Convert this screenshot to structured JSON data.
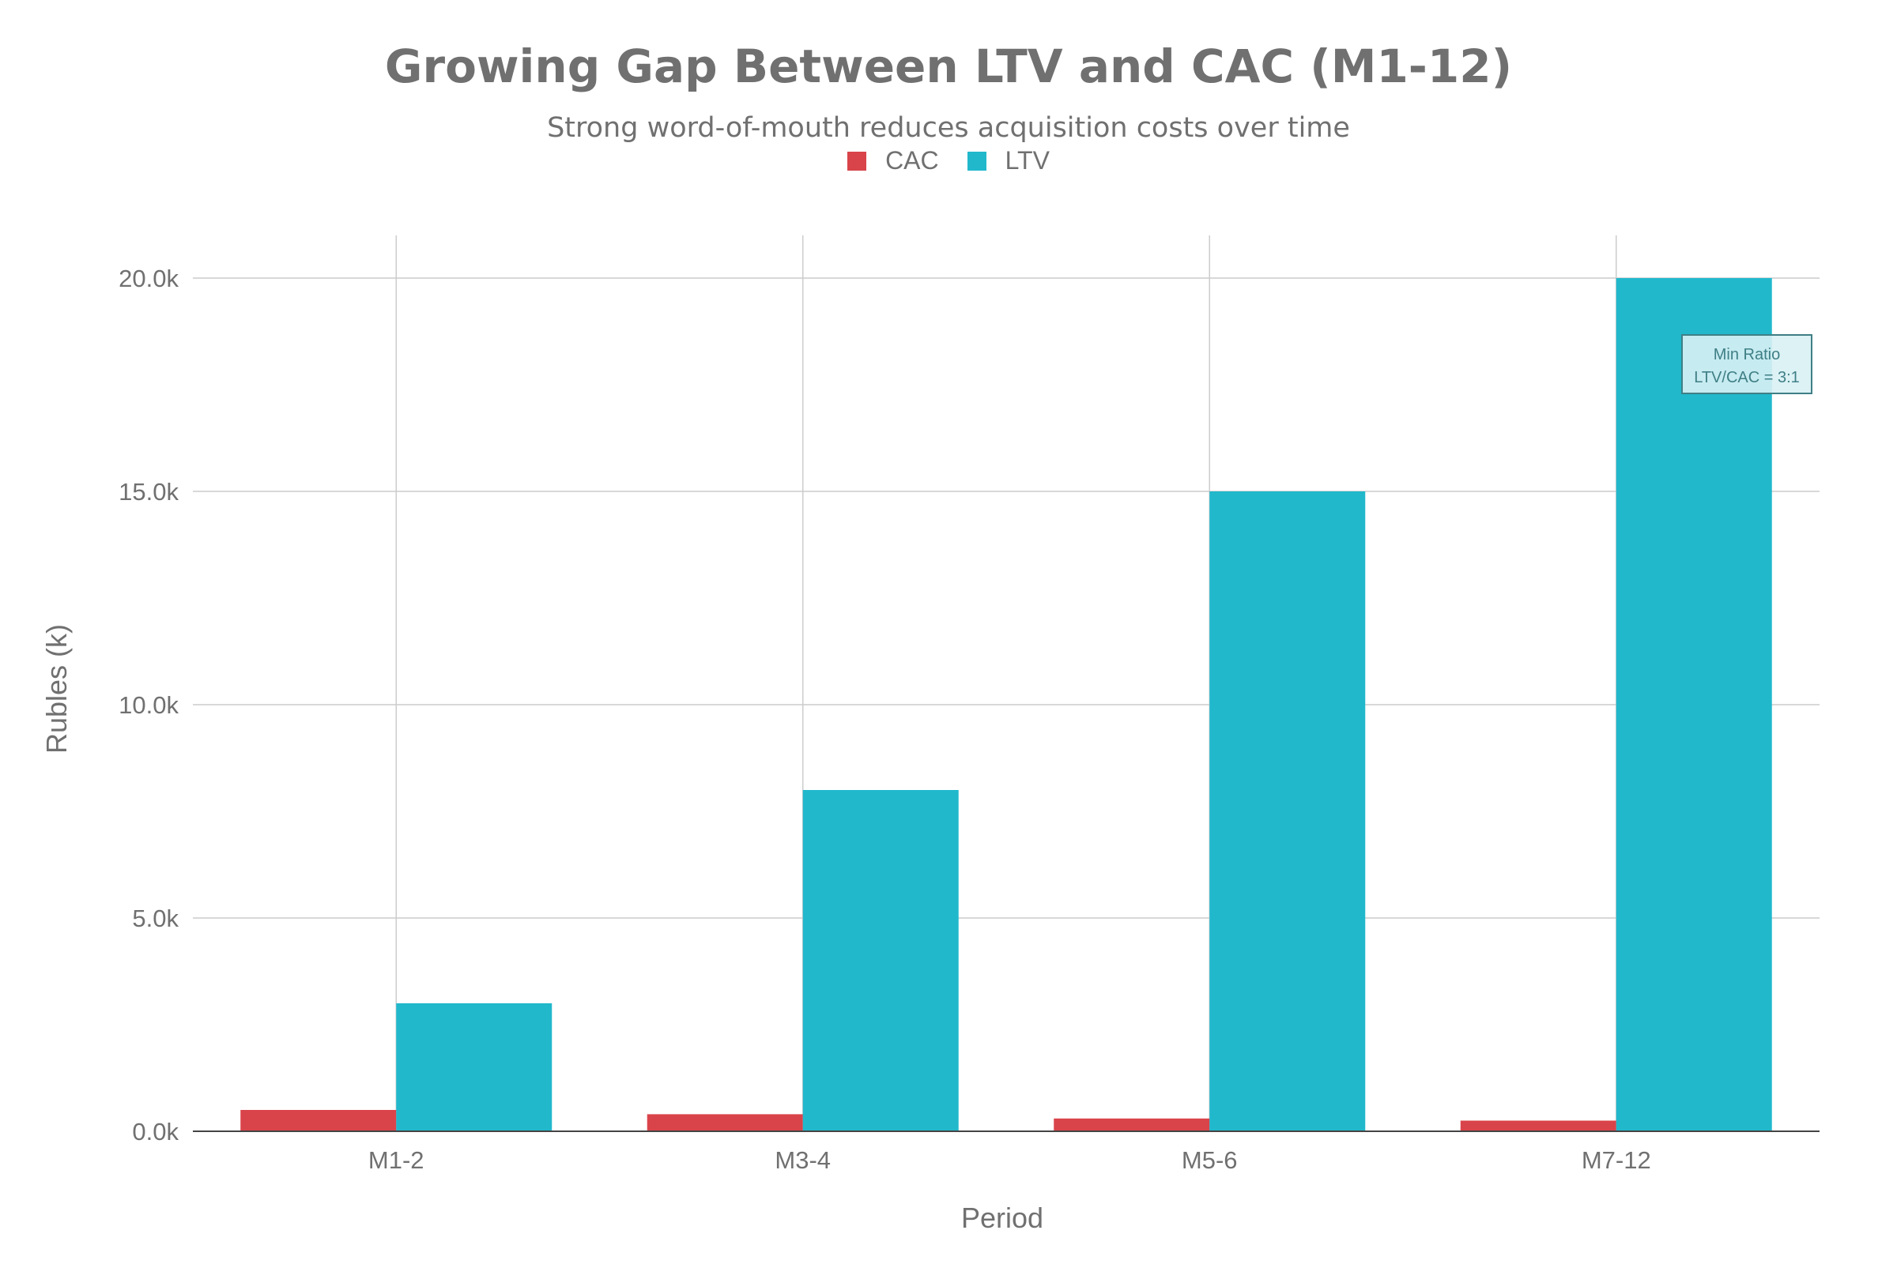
{
  "chart_data": {
    "type": "bar",
    "title": "Growing Gap Between LTV and CAC (M1-12)",
    "subtitle": "Strong word-of-mouth reduces acquisition costs over time",
    "xlabel": "Period",
    "ylabel": "Rubles (k)",
    "categories": [
      "M1-2",
      "M3-4",
      "M5-6",
      "M7-12"
    ],
    "series": [
      {
        "name": "CAC",
        "color": "#d9444a",
        "values": [
          500,
          400,
          300,
          250
        ]
      },
      {
        "name": "LTV",
        "color": "#21b8cc",
        "values": [
          3000,
          8000,
          15000,
          20000
        ]
      }
    ],
    "ylim": [
      0,
      21000
    ],
    "yticks": [
      0,
      5000,
      10000,
      15000,
      20000
    ],
    "ytick_labels": [
      "0.0k",
      "5.0k",
      "10.0k",
      "15.0k",
      "20.0k"
    ],
    "grid": true,
    "legend_position": "top-center",
    "annotation": {
      "line1": "Min Ratio",
      "line2": "LTV/CAC = 3:1",
      "color": "#3f7f86",
      "fill": "#d8f1f4"
    }
  }
}
